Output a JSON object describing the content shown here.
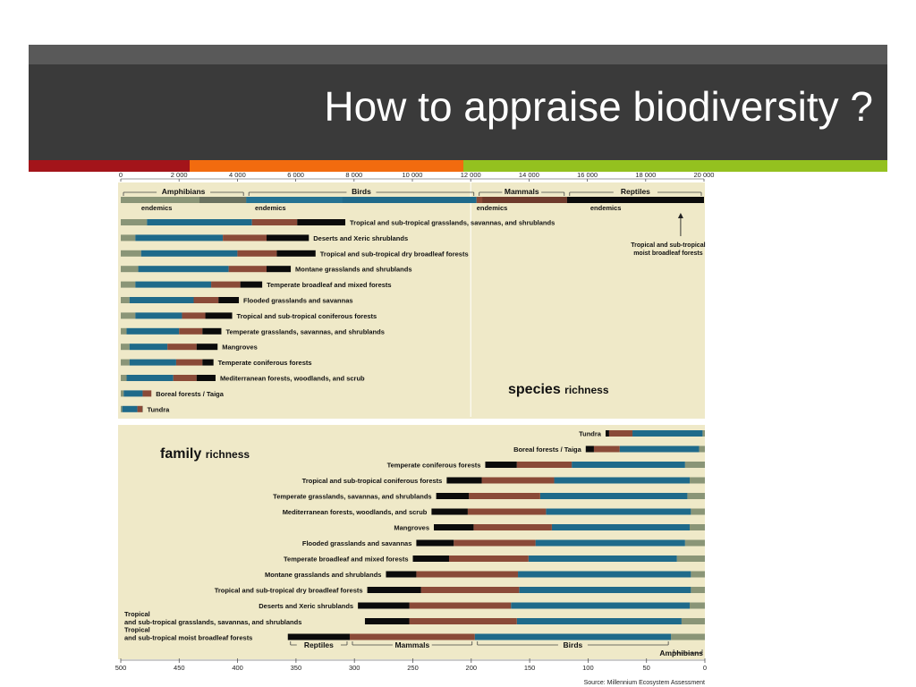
{
  "slide": {
    "title": "How to appraise  biodiversity ?",
    "colors": {
      "header_bg": "#3a3a3a",
      "top_strip": "#595959",
      "title_text": "#ffffff",
      "accent_segments": [
        "#a3141a",
        "#f26b0f",
        "#94c11f"
      ]
    }
  },
  "figure": {
    "source_note": "Source: Millennium Ecosystem Assessment",
    "colors": {
      "amphibians": "#8a9577",
      "amphibians_endemic": "#6a7260",
      "birds": "#1f6a8a",
      "mammals": "#8a4a38",
      "reptiles": "#0b0b0b",
      "panel_bg": "#efe9c8"
    }
  },
  "chart_data": [
    {
      "type": "bar",
      "stacked": true,
      "orientation": "horizontal",
      "label": "species richness",
      "title_parts": [
        "species",
        "richness"
      ],
      "x_axis_ticks": [
        "0",
        "2 000",
        "4 000",
        "6 000",
        "8 000",
        "10 000",
        "12 000",
        "14 000",
        "16 000",
        "18 000",
        "20 000"
      ],
      "xlim": [
        0,
        20000
      ],
      "group_headers": [
        "Amphibians",
        "Birds",
        "Mammals",
        "Reptiles"
      ],
      "endemics_label": "endemics",
      "legend_bar": {
        "amphibians": 4300,
        "birds": 7900,
        "mammals": 3100,
        "reptiles": 4700
      },
      "annotation": "Tropical and sub-tropical moist broadleaf forests",
      "categories": [
        "Tropical and sub-tropical grasslands, savannas, and shrublands",
        "Deserts and Xeric shrublands",
        "Tropical and sub-tropical dry broadleaf forests",
        "Montane grasslands and shrublands",
        "Temperate broadleaf and mixed forests",
        "Flooded grasslands and savannas",
        "Tropical and sub-tropical coniferous forests",
        "Temperate grasslands, savannas, and shrublands",
        "Mangroves",
        "Temperate coniferous forests",
        "Mediterranean forests, woodlands, and scrub",
        "Boreal forests / Taiga",
        "Tundra"
      ],
      "series": [
        {
          "name": "Amphibians",
          "values": [
            900,
            500,
            700,
            600,
            500,
            300,
            500,
            200,
            300,
            300,
            200,
            100,
            50
          ]
        },
        {
          "name": "Birds",
          "values": [
            3600,
            3000,
            3300,
            3100,
            2600,
            2200,
            1600,
            1800,
            1300,
            1600,
            1600,
            650,
            520
          ]
        },
        {
          "name": "Mammals",
          "values": [
            1550,
            1500,
            1350,
            1300,
            1000,
            850,
            800,
            800,
            1000,
            900,
            800,
            300,
            170
          ]
        },
        {
          "name": "Reptiles",
          "values": [
            1650,
            1450,
            1330,
            830,
            750,
            700,
            920,
            650,
            720,
            380,
            650,
            0,
            10
          ]
        }
      ]
    },
    {
      "type": "bar",
      "stacked": true,
      "orientation": "horizontal",
      "label": "family richness",
      "title_parts": [
        "family",
        "richness"
      ],
      "x_axis_ticks": [
        "500",
        "450",
        "400",
        "350",
        "300",
        "250",
        "200",
        "150",
        "100",
        "50",
        "0"
      ],
      "xlim": [
        500,
        0
      ],
      "group_footers": [
        "Reptiles",
        "Mammals",
        "Birds",
        "Amphibians"
      ],
      "categories": [
        "Tundra",
        "Boreal forests / Taiga",
        "Temperate coniferous forests",
        "Tropical and sub-tropical coniferous forests",
        "Temperate grasslands, savannas, and shrublands",
        "Mediterranean forests, woodlands, and scrub",
        "Mangroves",
        "Flooded grasslands and savannas",
        "Temperate broadleaf and mixed forests",
        "Montane grasslands and shrublands",
        "Tropical and sub-tropical dry broadleaf forests",
        "Deserts and Xeric shrublands",
        "Tropical\nand sub-tropical grasslands, savannas, and shrublands",
        "Tropical\nand sub-tropical moist broadleaf forests"
      ],
      "series": [
        {
          "name": "Amphibians",
          "values": [
            2,
            5,
            17,
            13,
            15,
            12,
            13,
            17,
            24,
            12,
            12,
            13,
            20,
            29
          ]
        },
        {
          "name": "Birds",
          "values": [
            60,
            68,
            97,
            116,
            126,
            124,
            118,
            128,
            127,
            148,
            147,
            153,
            141,
            168
          ]
        },
        {
          "name": "Mammals",
          "values": [
            20,
            22,
            47,
            62,
            61,
            67,
            67,
            70,
            68,
            87,
            84,
            87,
            92,
            107
          ]
        },
        {
          "name": "Reptiles",
          "values": [
            3,
            7,
            27,
            30,
            28,
            31,
            34,
            32,
            31,
            26,
            46,
            44,
            38,
            53
          ]
        }
      ]
    }
  ]
}
